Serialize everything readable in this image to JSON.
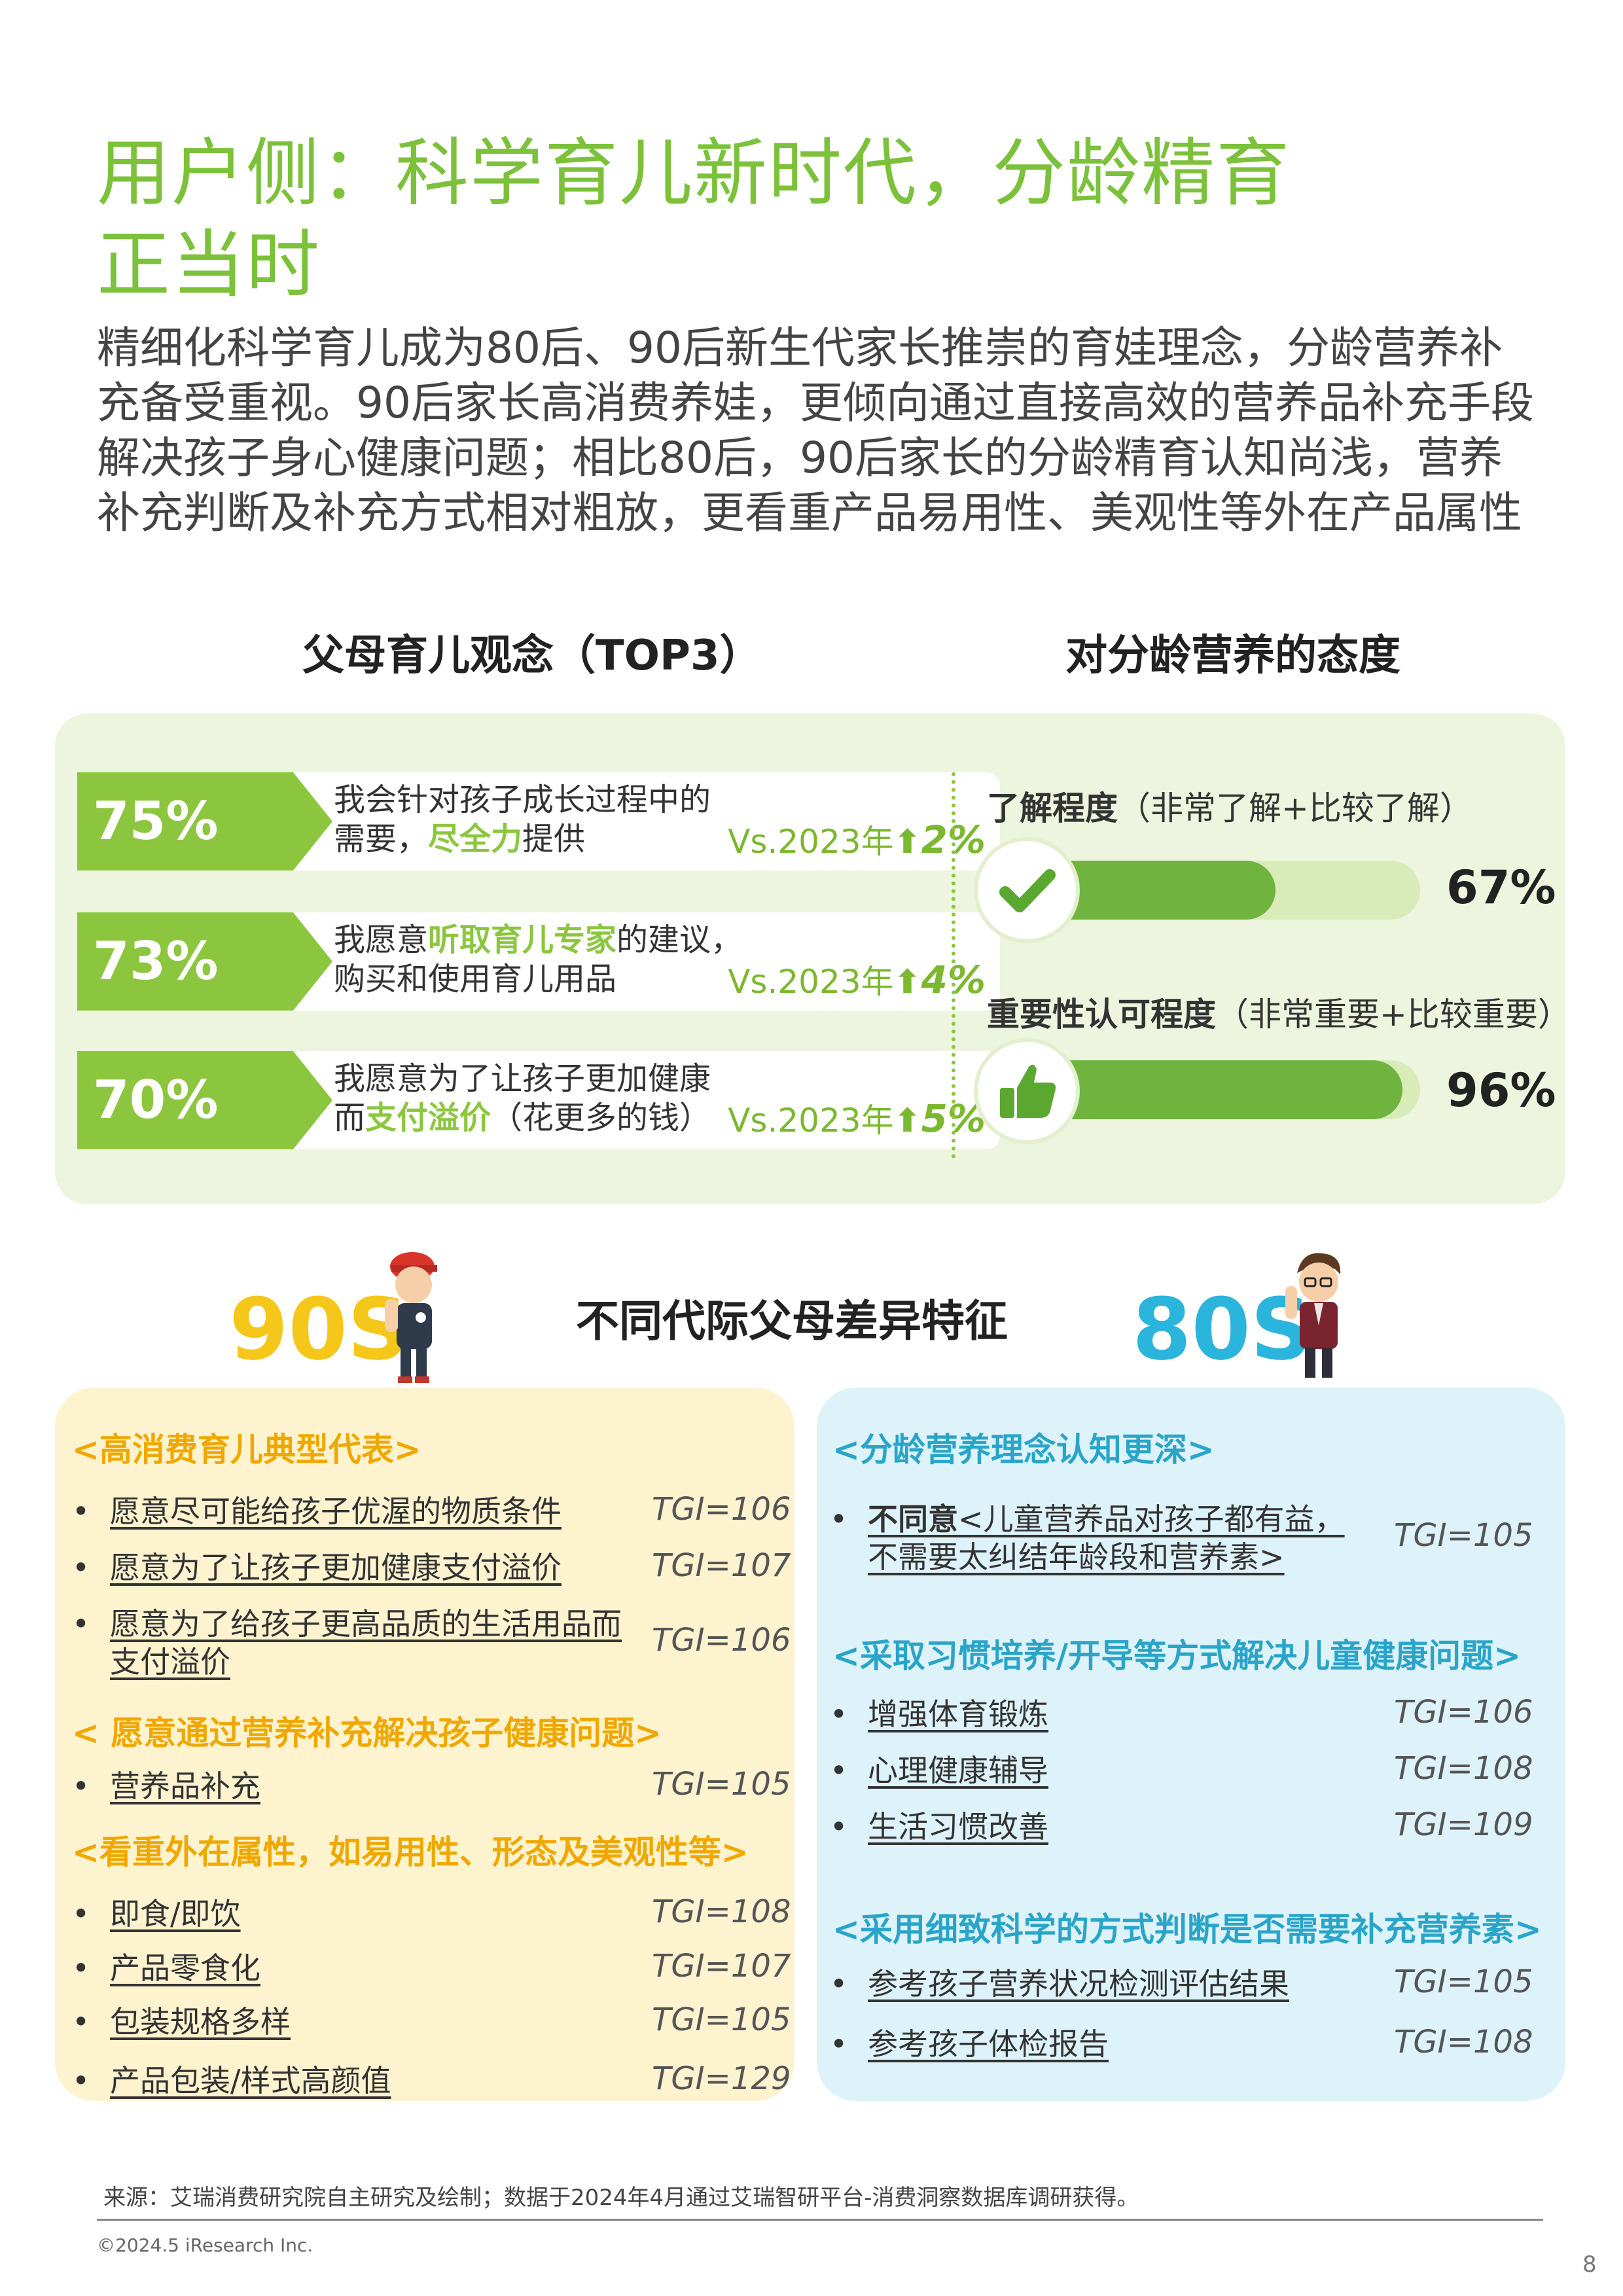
{
  "title": {
    "line1": "用户侧：科学育儿新时代，分龄精育",
    "line2": "正当时"
  },
  "intro": "精细化科学育儿成为80后、90后新生代家长推崇的育娃理念，分龄营养补充备受重视。90后家长高消费养娃，更倾向通过直接高效的营养品补充手段解决孩子身心健康问题；相比80后，90后家长的分龄精育认知尚浅，营养补充判断及补充方式相对粗放，更看重产品易用性、美观性等外在产品属性",
  "left_heading": "父母育儿观念（TOP3）",
  "right_heading": "对分龄营养的态度",
  "stats": [
    {
      "pct": "75%",
      "line1": "我会针对孩子成长过程中的",
      "line2_pre": "需要，",
      "line2_hl": "尽全力",
      "line2_post": "提供",
      "vs": "Vs.2023年",
      "arrow": "⬆",
      "delta": "2%"
    },
    {
      "pct": "73%",
      "line1_pre": "我愿意",
      "line1_hl": "听取育儿专家",
      "line1_post": "的建议，",
      "line2": "购买和使用育儿用品",
      "vs": "Vs.2023年",
      "arrow": "⬆",
      "delta": "4%"
    },
    {
      "pct": "70%",
      "line1": "我愿意为了让孩子更加健康",
      "line2_pre": "而",
      "line2_hl": "支付溢价",
      "line2_post": "（花更多的钱）",
      "vs": "Vs.2023年",
      "arrow": "⬆",
      "delta": "5%"
    }
  ],
  "attitudes": [
    {
      "label_bold": "了解程度",
      "label_rest": "（非常了解+比较了解）",
      "value": "67%",
      "fraction": 0.67,
      "icon": "check-icon"
    },
    {
      "label_bold": "重要性认可程度",
      "label_rest": "（非常重要+比较重要）",
      "value": "96%",
      "fraction": 0.96,
      "icon": "thumbs-up-icon"
    }
  ],
  "generations": {
    "gen90": "90S",
    "gen80": "80S",
    "title": "不同代际父母差异特征"
  },
  "left_panel": {
    "bullet": "•",
    "sections": [
      {
        "heading": "<高消费育儿典型代表>",
        "items": [
          {
            "text": "愿意尽可能给孩子优渥的物质条件",
            "tgi": "TGI=106"
          },
          {
            "text": "愿意为了让孩子更加健康支付溢价",
            "tgi": "TGI=107"
          },
          {
            "text1": "愿意为了给孩子更高品质的生活用品而",
            "text2": "支付溢价",
            "tgi": "TGI=106"
          }
        ]
      },
      {
        "heading": "< 愿意通过营养补充解决孩子健康问题>",
        "items": [
          {
            "text": "营养品补充",
            "tgi": "TGI=105"
          }
        ]
      },
      {
        "heading": "<看重外在属性，如易用性、形态及美观性等>",
        "items": [
          {
            "text": "即食/即饮",
            "tgi": "TGI=108"
          },
          {
            "text": "产品零食化",
            "tgi": "TGI=107"
          },
          {
            "text": "包装规格多样",
            "tgi": "TGI=105"
          },
          {
            "text": "产品包装/样式高颜值",
            "tgi": "TGI=129"
          }
        ]
      }
    ]
  },
  "right_panel": {
    "bullet": "•",
    "sections": [
      {
        "heading": "<分龄营养理念认知更深>",
        "items": [
          {
            "text1_bold": "不同意",
            "text1_rest": "<儿童营养品对孩子都有益，",
            "text2": "不需要太纠结年龄段和营养素>",
            "tgi": "TGI=105"
          }
        ]
      },
      {
        "heading": "<采取习惯培养/开导等方式解决儿童健康问题>",
        "items": [
          {
            "text": "增强体育锻炼",
            "tgi": "TGI=106"
          },
          {
            "text": "心理健康辅导",
            "tgi": "TGI=108"
          },
          {
            "text": "生活习惯改善",
            "tgi": "TGI=109"
          }
        ]
      },
      {
        "heading": "<采用细致科学的方式判断是否需要补充营养素>",
        "items": [
          {
            "text": "参考孩子营养状况检测评估结果",
            "tgi": "TGI=105"
          },
          {
            "text": "参考孩子体检报告",
            "tgi": "TGI=108"
          }
        ]
      }
    ]
  },
  "footer": {
    "source": "来源：艾瑞消费研究院自主研究及绘制；数据于2024年4月通过艾瑞智研平台-消费洞察数据库调研获得。",
    "copyright": "©2024.5 iResearch Inc.",
    "page": "8"
  },
  "colors": {
    "title_green": "#7cc13a",
    "accent_green": "#8cc63f",
    "yellow_90s": "#f5c71a",
    "blue_80s": "#2bb4dc",
    "panel_yellow": "#fdf3cf",
    "panel_blue": "#def3f9"
  }
}
